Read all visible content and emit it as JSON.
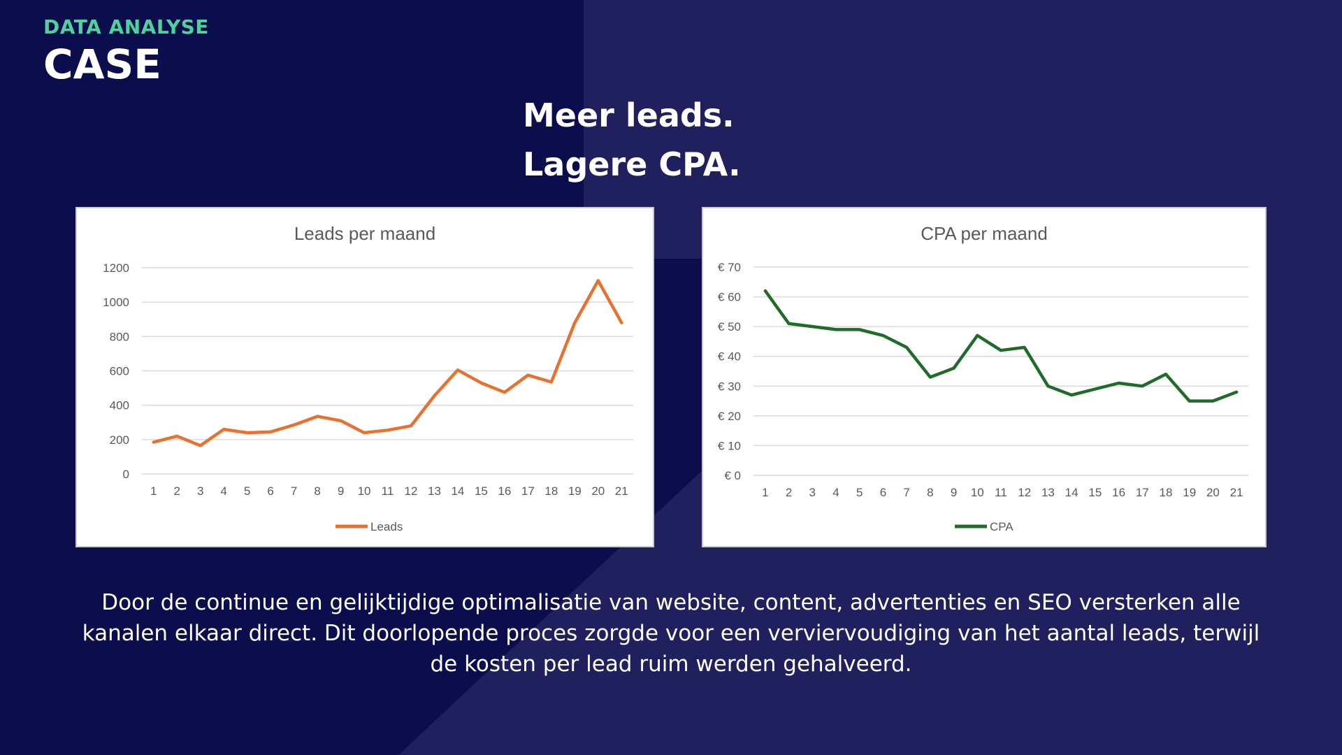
{
  "header": {
    "eyebrow": "DATA ANALYSE",
    "title": "CASE"
  },
  "headline": {
    "line1": "Meer leads.",
    "line2": "Lagere CPA."
  },
  "colors": {
    "background": "#0b0d4d",
    "shape": "#20205f",
    "eyebrow": "#4fd19b",
    "leads_line": "#e8712f",
    "cpa_line": "#1f6b2a",
    "gridline": "#d9d9d9",
    "axis_text": "#595959"
  },
  "chart_data": [
    {
      "id": "leads",
      "type": "line",
      "title": "Leads per maand",
      "categories": [
        "1",
        "2",
        "3",
        "4",
        "5",
        "6",
        "7",
        "8",
        "9",
        "10",
        "11",
        "12",
        "13",
        "14",
        "15",
        "16",
        "17",
        "18",
        "19",
        "20",
        "21"
      ],
      "series": [
        {
          "name": "Leads",
          "values": [
            185,
            220,
            165,
            260,
            240,
            245,
            285,
            335,
            310,
            240,
            255,
            280,
            455,
            605,
            530,
            475,
            575,
            535,
            880,
            1125,
            880
          ]
        }
      ],
      "ylim": [
        0,
        1200
      ],
      "yticks": [
        0,
        200,
        400,
        600,
        800,
        1000,
        1200
      ],
      "ytick_labels": [
        "0",
        "200",
        "400",
        "600",
        "800",
        "1000",
        "1200"
      ],
      "xlabel": "",
      "ylabel": "",
      "grid": true,
      "legend": "bottom"
    },
    {
      "id": "cpa",
      "type": "line",
      "title": "CPA per maand",
      "categories": [
        "1",
        "2",
        "3",
        "4",
        "5",
        "6",
        "7",
        "8",
        "9",
        "10",
        "11",
        "12",
        "13",
        "14",
        "15",
        "16",
        "17",
        "18",
        "19",
        "20",
        "21"
      ],
      "series": [
        {
          "name": "CPA",
          "values": [
            62,
            51,
            50,
            49,
            49,
            47,
            43,
            33,
            36,
            47,
            42,
            43,
            30,
            27,
            29,
            31,
            30,
            34,
            25,
            25,
            28
          ]
        }
      ],
      "ylim": [
        0,
        70
      ],
      "yticks": [
        0,
        10,
        20,
        30,
        40,
        50,
        60,
        70
      ],
      "ytick_labels": [
        "€ 0",
        "€ 10",
        "€ 20",
        "€ 30",
        "€ 40",
        "€ 50",
        "€ 60",
        "€ 70"
      ],
      "xlabel": "",
      "ylabel": "",
      "grid": true,
      "legend": "bottom"
    }
  ],
  "body": {
    "text": "Door de continue en gelijktijdige optimalisatie van website, content, advertenties en SEO versterken alle kanalen elkaar direct. Dit doorlopende proces zorgde voor een verviervoudiging van het aantal leads, terwijl de kosten per lead ruim werden gehalveerd."
  }
}
